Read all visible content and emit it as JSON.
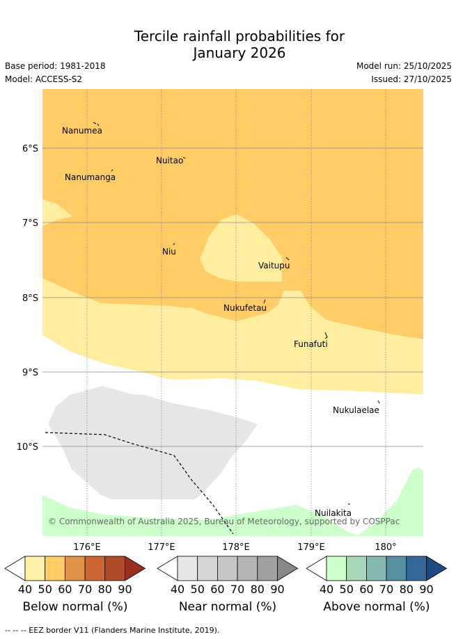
{
  "title": {
    "line1": "Tercile rainfall probabilities for",
    "line2": "January 2026"
  },
  "header": {
    "base_period": "Base period: 1981-2018",
    "model": "Model: ACCESS-S2",
    "model_run": "Model run: 25/10/2025",
    "issued": "Issued: 27/10/2025"
  },
  "map": {
    "lat_labels": [
      "6°S",
      "7°S",
      "8°S",
      "9°S",
      "10°S"
    ],
    "lon_labels": [
      "176°E",
      "177°E",
      "178°E",
      "179°E",
      "180°"
    ],
    "islands": [
      "Nanumea",
      "Nuitao",
      "Nanumanga",
      "Niu",
      "Vaitupu",
      "Nukufetau",
      "Funafuti",
      "Nukulaelae",
      "Nuilakita"
    ],
    "copyright": "© Commonwealth of Australia 2025, Bureau of Meteorology, supported by COSPPac"
  },
  "colors": {
    "below_50": "#ffcc66",
    "below_40": "#ffeea0",
    "near_40": "#e6e6e6",
    "above_40": "#ccffcc",
    "grid": "#888888"
  },
  "colorbars": [
    {
      "label": "Below normal (%)",
      "ticks": [
        "40",
        "50",
        "60",
        "70",
        "80",
        "90"
      ],
      "colors": [
        "#fff0a8",
        "#ffcc66",
        "#e09448",
        "#cc6633",
        "#b04a28",
        "#9a2f1e"
      ]
    },
    {
      "label": "Near normal (%)",
      "ticks": [
        "40",
        "50",
        "60",
        "70",
        "80",
        "90"
      ],
      "colors": [
        "#e6e6e6",
        "#d6d6d6",
        "#c6c6c6",
        "#b4b4b4",
        "#a0a0a0",
        "#888888"
      ]
    },
    {
      "label": "Above normal (%)",
      "ticks": [
        "40",
        "50",
        "60",
        "70",
        "80",
        "90"
      ],
      "colors": [
        "#ccffcc",
        "#a8d8b8",
        "#84b8b0",
        "#5890a0",
        "#34689a",
        "#1a4a80"
      ]
    }
  ],
  "footer": "-- -- -- EEZ border V11 (Flanders Marine Institute, 2019)."
}
